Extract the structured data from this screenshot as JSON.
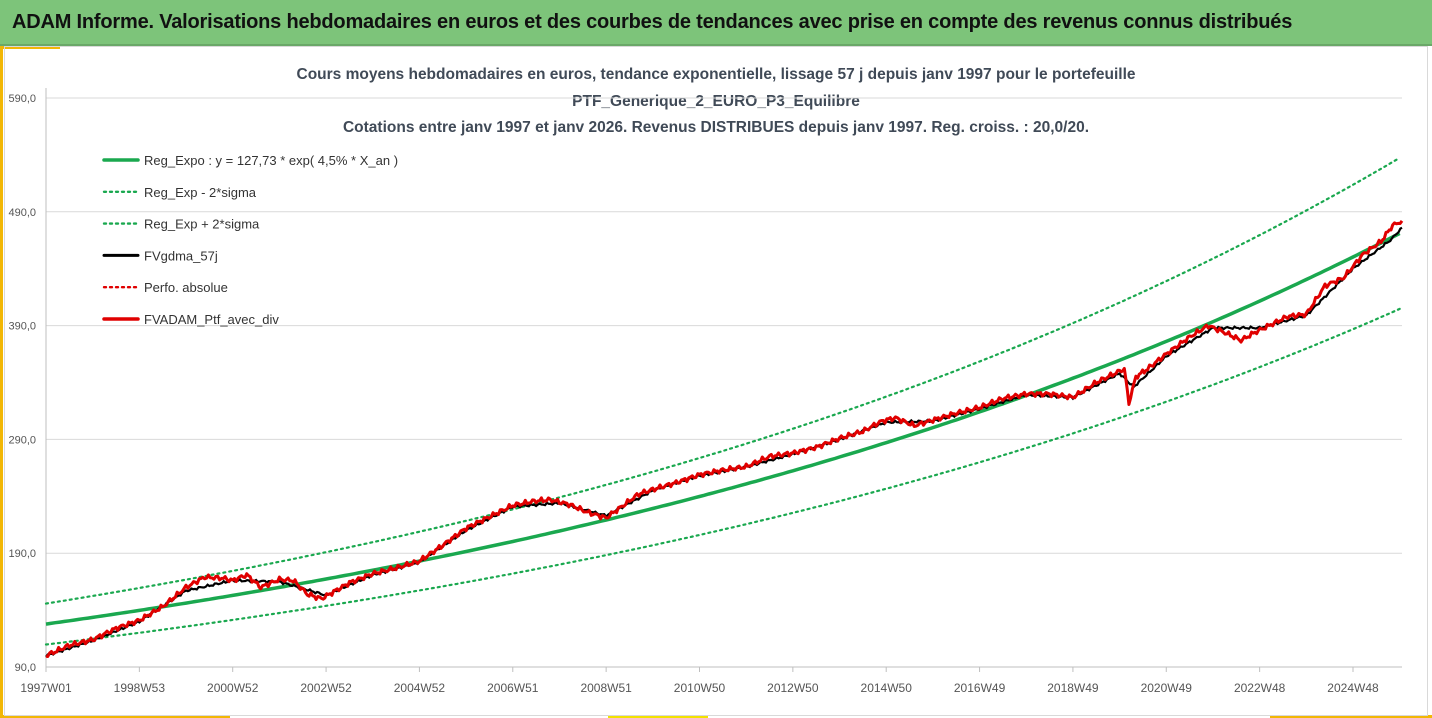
{
  "header": {
    "title": "ADAM Informe. Valorisations hebdomadaires en euros et des courbes de tendances avec prise en compte des revenus connus distribués"
  },
  "colors": {
    "header_bg": "#7dc47a",
    "trend": "#1aa84f",
    "black": "#000000",
    "red": "#e00000",
    "accent_gold": "#f2b705"
  },
  "chart_data": {
    "type": "line",
    "title_lines": [
      "Cours moyens hebdomadaires  en euros, tendance exponentielle, lissage 57 j depuis janv 1997 pour le portefeuille",
      "PTF_Generique_2_EURO_P3_Equilibre",
      "Cotations entre janv 1997 et janv 2026. Revenus DISTRIBUES depuis janv 1997. Reg. croiss. : 20,0/20."
    ],
    "x_range_years": [
      1997.0,
      2026.05
    ],
    "ylim": [
      90,
      590
    ],
    "y_ticks": [
      90,
      190,
      290,
      390,
      490,
      590
    ],
    "y_tick_labels": [
      "90,0",
      "190,0",
      "290,0",
      "390,0",
      "490,0",
      "590,0"
    ],
    "x_ticks": [
      {
        "label": "1997W01",
        "year": 1997.0
      },
      {
        "label": "1998W53",
        "year": 1999.0
      },
      {
        "label": "2000W52",
        "year": 2001.0
      },
      {
        "label": "2002W52",
        "year": 2003.0
      },
      {
        "label": "2004W52",
        "year": 2005.0
      },
      {
        "label": "2006W51",
        "year": 2007.0
      },
      {
        "label": "2008W51",
        "year": 2009.0
      },
      {
        "label": "2010W50",
        "year": 2011.0
      },
      {
        "label": "2012W50",
        "year": 2013.0
      },
      {
        "label": "2014W50",
        "year": 2015.0
      },
      {
        "label": "2016W49",
        "year": 2017.0
      },
      {
        "label": "2018W49",
        "year": 2019.0
      },
      {
        "label": "2020W49",
        "year": 2021.0
      },
      {
        "label": "2022W48",
        "year": 2023.0
      },
      {
        "label": "2024W48",
        "year": 2025.0
      }
    ],
    "regression": {
      "a": 127.73,
      "rate": 0.045,
      "band_offset": 18.0
    },
    "legend": [
      {
        "label": "Reg_Expo : y = 127,73 * exp( 4,5% *  X_an )",
        "style": "solid-green"
      },
      {
        "label": "Reg_Exp - 2*sigma",
        "style": "dotted-green"
      },
      {
        "label": "Reg_Exp + 2*sigma",
        "style": "dotted-green"
      },
      {
        "label": "FVgdma_57j",
        "style": "solid-black"
      },
      {
        "label": "Perfo. absolue",
        "style": "dotted-red"
      },
      {
        "label": "FVADAM_Ptf_avec_div",
        "style": "solid-red"
      }
    ],
    "series": [
      {
        "name": "FVADAM_Ptf_avec_div",
        "points": [
          [
            1997.0,
            100
          ],
          [
            1997.5,
            109
          ],
          [
            1998.0,
            114
          ],
          [
            1998.5,
            124
          ],
          [
            1999.0,
            131
          ],
          [
            1999.5,
            143
          ],
          [
            2000.0,
            160
          ],
          [
            2000.4,
            169
          ],
          [
            2000.8,
            168
          ],
          [
            2001.0,
            166
          ],
          [
            2001.3,
            171
          ],
          [
            2001.6,
            160
          ],
          [
            2002.0,
            167
          ],
          [
            2002.3,
            166
          ],
          [
            2002.6,
            154
          ],
          [
            2002.9,
            150
          ],
          [
            2003.2,
            157
          ],
          [
            2003.5,
            164
          ],
          [
            2004.0,
            172
          ],
          [
            2004.5,
            177
          ],
          [
            2005.0,
            183
          ],
          [
            2005.5,
            197
          ],
          [
            2006.0,
            212
          ],
          [
            2006.5,
            222
          ],
          [
            2007.0,
            232
          ],
          [
            2007.5,
            236
          ],
          [
            2007.8,
            237
          ],
          [
            2008.2,
            233
          ],
          [
            2008.6,
            226
          ],
          [
            2009.0,
            221
          ],
          [
            2009.3,
            230
          ],
          [
            2009.7,
            242
          ],
          [
            2010.0,
            246
          ],
          [
            2010.5,
            252
          ],
          [
            2011.0,
            259
          ],
          [
            2011.5,
            263
          ],
          [
            2012.0,
            266
          ],
          [
            2012.5,
            275
          ],
          [
            2013.0,
            278
          ],
          [
            2013.5,
            283
          ],
          [
            2014.0,
            291
          ],
          [
            2014.5,
            297
          ],
          [
            2014.9,
            306
          ],
          [
            2015.2,
            309
          ],
          [
            2015.6,
            302
          ],
          [
            2016.0,
            307
          ],
          [
            2016.5,
            313
          ],
          [
            2017.0,
            318
          ],
          [
            2017.5,
            326
          ],
          [
            2018.0,
            330
          ],
          [
            2018.5,
            330
          ],
          [
            2019.0,
            327
          ],
          [
            2019.5,
            340
          ],
          [
            2020.0,
            350
          ],
          [
            2020.1,
            352
          ],
          [
            2020.2,
            322
          ],
          [
            2020.35,
            345
          ],
          [
            2020.6,
            352
          ],
          [
            2021.0,
            365
          ],
          [
            2021.5,
            380
          ],
          [
            2021.9,
            390
          ],
          [
            2022.3,
            383
          ],
          [
            2022.6,
            377
          ],
          [
            2022.9,
            384
          ],
          [
            2023.2,
            390
          ],
          [
            2023.6,
            398
          ],
          [
            2024.0,
            400
          ],
          [
            2024.4,
            425
          ],
          [
            2024.8,
            432
          ],
          [
            2025.2,
            452
          ],
          [
            2025.6,
            464
          ],
          [
            2025.85,
            478
          ],
          [
            2026.05,
            482
          ]
        ]
      },
      {
        "name": "FVgdma_57j",
        "points": [
          [
            1997.0,
            100
          ],
          [
            1998.0,
            113
          ],
          [
            1999.0,
            130
          ],
          [
            2000.0,
            157
          ],
          [
            2001.0,
            166
          ],
          [
            2002.0,
            165
          ],
          [
            2003.0,
            153
          ],
          [
            2004.0,
            171
          ],
          [
            2005.0,
            182
          ],
          [
            2006.0,
            210
          ],
          [
            2007.0,
            231
          ],
          [
            2008.0,
            234
          ],
          [
            2009.0,
            223
          ],
          [
            2010.0,
            245
          ],
          [
            2011.0,
            258
          ],
          [
            2012.0,
            266
          ],
          [
            2013.0,
            277
          ],
          [
            2014.0,
            290
          ],
          [
            2015.0,
            305
          ],
          [
            2016.0,
            306
          ],
          [
            2017.0,
            317
          ],
          [
            2018.0,
            329
          ],
          [
            2019.0,
            327
          ],
          [
            2020.0,
            348
          ],
          [
            2020.3,
            336
          ],
          [
            2021.0,
            363
          ],
          [
            2022.0,
            388
          ],
          [
            2023.0,
            388
          ],
          [
            2024.0,
            399
          ],
          [
            2025.0,
            440
          ],
          [
            2025.8,
            465
          ],
          [
            2026.05,
            476
          ]
        ]
      }
    ]
  }
}
